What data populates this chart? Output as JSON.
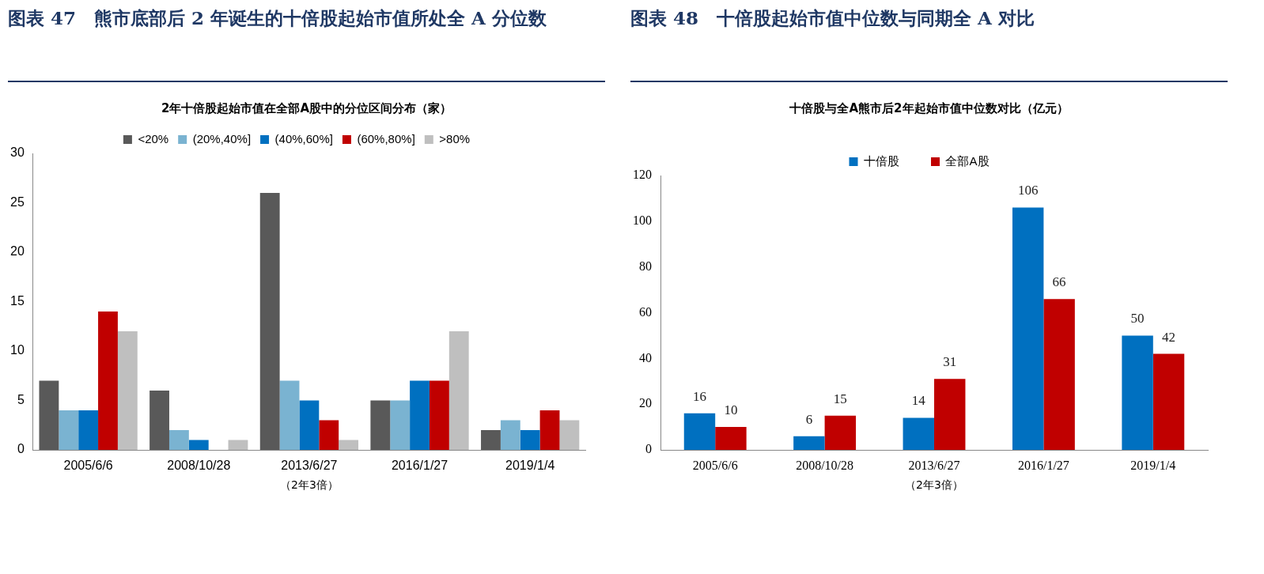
{
  "chart_data": [
    {
      "type": "bar",
      "title": "图表 47　熊市底部后 2 年诞生的十倍股起始市值所处全 A 分位数",
      "subtitle": "2年十倍股起始市值在全部A股中的分位区间分布（家）",
      "xlabel": "（2年3倍）",
      "categories": [
        "2005/6/6",
        "2008/10/28",
        "2013/6/27",
        "2016/1/27",
        "2019/1/4"
      ],
      "series": [
        {
          "name": "<20%",
          "color": "#595959",
          "values": [
            7,
            6,
            26,
            5,
            2
          ]
        },
        {
          "name": "(20%,40%]",
          "color": "#7ab3d1",
          "values": [
            4,
            2,
            7,
            5,
            3
          ]
        },
        {
          "name": "(40%,60%]",
          "color": "#0070c0",
          "values": [
            4,
            1,
            5,
            7,
            2
          ]
        },
        {
          "name": "(60%,80%]",
          "color": "#c00000",
          "values": [
            14,
            0,
            3,
            7,
            4
          ]
        },
        {
          "name": ">80%",
          "color": "#bfbfbf",
          "values": [
            12,
            1,
            1,
            12,
            3
          ]
        }
      ],
      "ylim": [
        0,
        30
      ],
      "yticks": [
        0,
        5,
        10,
        15,
        20,
        25,
        30
      ],
      "grid": false,
      "legend": "top"
    },
    {
      "type": "bar",
      "title": "图表 48　十倍股起始市值中位数与同期全 A 对比",
      "subtitle": "十倍股与全A熊市后2年起始市值中位数对比（亿元）",
      "xlabel": "（2年3倍）",
      "categories": [
        "2005/6/6",
        "2008/10/28",
        "2013/6/27",
        "2016/1/27",
        "2019/1/4"
      ],
      "series": [
        {
          "name": "十倍股",
          "color": "#0070c0",
          "values": [
            16,
            6,
            14,
            106,
            50
          ]
        },
        {
          "name": "全部A股",
          "color": "#c00000",
          "values": [
            10,
            15,
            31,
            66,
            42
          ]
        }
      ],
      "ylim": [
        0,
        120
      ],
      "yticks": [
        0,
        20,
        40,
        60,
        80,
        100,
        120
      ],
      "grid": false,
      "legend": "top",
      "data_labels": true
    }
  ]
}
